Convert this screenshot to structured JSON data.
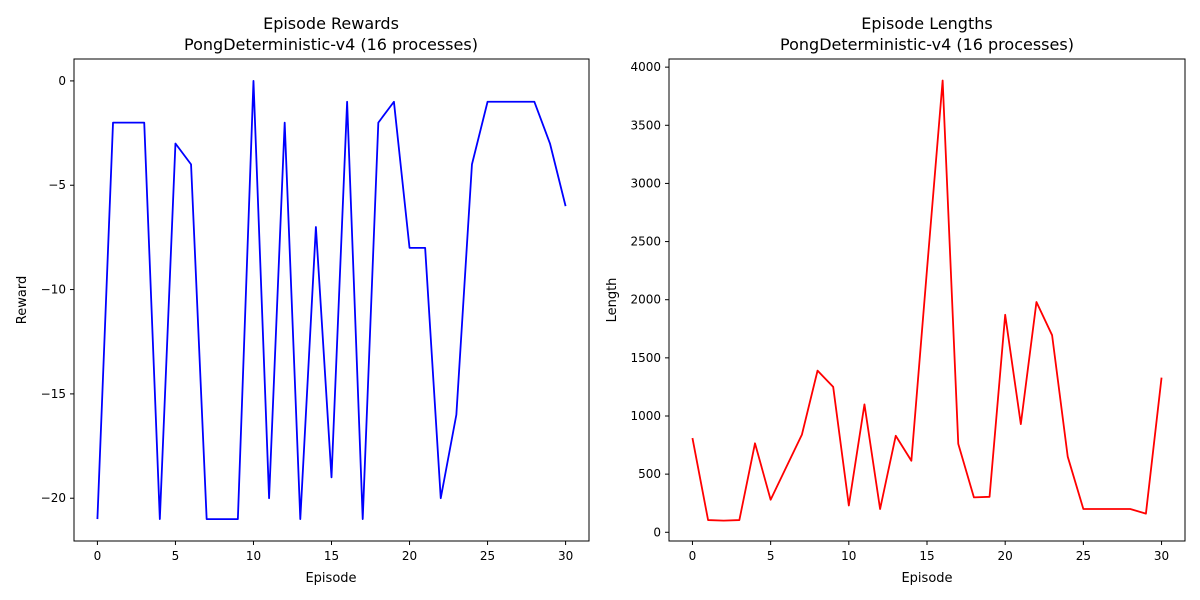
{
  "chart_data": [
    {
      "type": "line",
      "title": "Episode Rewards",
      "subtitle": "PongDeterministic-v4 (16 processes)",
      "xlabel": "Episode",
      "ylabel": "Reward",
      "xlim": [
        -1.5,
        31.5
      ],
      "ylim": [
        -22.05,
        1.05
      ],
      "xticks": [
        0,
        5,
        10,
        15,
        20,
        25,
        30
      ],
      "yticks": [
        -20,
        -15,
        -10,
        -5,
        0
      ],
      "ytick_labels": [
        "−20",
        "−15",
        "−10",
        "−5",
        "0"
      ],
      "grid": false,
      "series": [
        {
          "color": "#0000ff",
          "x": [
            0,
            1,
            2,
            3,
            4,
            5,
            6,
            7,
            8,
            9,
            10,
            11,
            12,
            13,
            14,
            15,
            16,
            17,
            18,
            19,
            20,
            21,
            22,
            23,
            24,
            25,
            26,
            27,
            28,
            29,
            30
          ],
          "y": [
            -21,
            -2,
            -2,
            -2,
            -21,
            -3,
            -4,
            -21,
            -21,
            -21,
            0,
            -20,
            -2,
            -21,
            -7,
            -19,
            -1,
            -21,
            -2,
            -1,
            -8,
            -8,
            -20,
            -16,
            -4,
            -1,
            -1,
            -1,
            -1,
            -3,
            -6
          ]
        }
      ]
    },
    {
      "type": "line",
      "title": "Episode Lengths",
      "subtitle": "PongDeterministic-v4 (16 processes)",
      "xlabel": "Episode",
      "ylabel": "Length",
      "xlim": [
        -1.5,
        31.5
      ],
      "ylim": [
        -75,
        4070
      ],
      "xticks": [
        0,
        5,
        10,
        15,
        20,
        25,
        30
      ],
      "yticks": [
        0,
        500,
        1000,
        1500,
        2000,
        2500,
        3000,
        3500,
        4000
      ],
      "ytick_labels": [
        "0",
        "500",
        "1000",
        "1500",
        "2000",
        "2500",
        "3000",
        "3500",
        "4000"
      ],
      "grid": false,
      "series": [
        {
          "color": "#ff0000",
          "x": [
            0,
            1,
            2,
            3,
            4,
            5,
            6,
            7,
            8,
            9,
            10,
            11,
            12,
            13,
            14,
            15,
            16,
            17,
            18,
            19,
            20,
            21,
            22,
            23,
            24,
            25,
            26,
            27,
            28,
            29,
            30
          ],
          "y": [
            810,
            105,
            100,
            105,
            765,
            280,
            560,
            840,
            1390,
            1250,
            230,
            1100,
            200,
            830,
            615,
            2260,
            3885,
            760,
            300,
            305,
            1870,
            930,
            1980,
            1695,
            650,
            200,
            200,
            200,
            200,
            160,
            1330
          ]
        }
      ]
    }
  ]
}
